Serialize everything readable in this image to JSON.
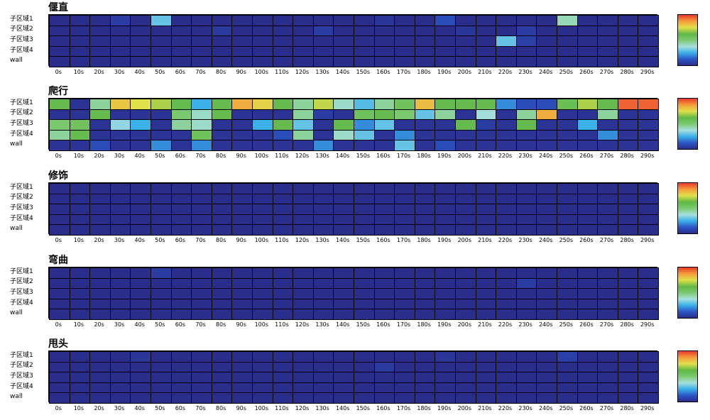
{
  "chart_data": [
    {
      "type": "heatmap",
      "title": "偃直",
      "rows": [
        "子区域1",
        "子区域2",
        "子区域3",
        "子区域4",
        "wall"
      ],
      "columns": [
        "0s",
        "10s",
        "20s",
        "30s",
        "40s",
        "50s",
        "60s",
        "70s",
        "80s",
        "90s",
        "100s",
        "110s",
        "120s",
        "130s",
        "140s",
        "150s",
        "160s",
        "170s",
        "180s",
        "190s",
        "200s",
        "210s",
        "220s",
        "230s",
        "240s",
        "250s",
        "260s",
        "270s",
        "280s",
        "290s"
      ],
      "values": [
        [
          0,
          0,
          0,
          0.05,
          0,
          0.3,
          0,
          0,
          0,
          0,
          0,
          0,
          0,
          0,
          0,
          0,
          0.03,
          0,
          0,
          0.1,
          0,
          0,
          0,
          0,
          0,
          0.42,
          0,
          0,
          0,
          0
        ],
        [
          0,
          0,
          0,
          0,
          0,
          0,
          0,
          0,
          0.04,
          0,
          0,
          0,
          0,
          0.05,
          0,
          0,
          0,
          0,
          0,
          0,
          0.03,
          0,
          0,
          0.05,
          0,
          0,
          0,
          0,
          0,
          0
        ],
        [
          0,
          0,
          0,
          0,
          0,
          0,
          0,
          0,
          0,
          0,
          0,
          0,
          0,
          0,
          0,
          0,
          0,
          0,
          0,
          0,
          0,
          0,
          0.3,
          0.06,
          0,
          0,
          0,
          0,
          0,
          0
        ],
        [
          0,
          0,
          0,
          0,
          0,
          0,
          0,
          0,
          0,
          0,
          0,
          0,
          0,
          0,
          0,
          0,
          0,
          0,
          0,
          0,
          0,
          0,
          0,
          0,
          0,
          0,
          0,
          0,
          0,
          0
        ],
        [
          0,
          0,
          0,
          0,
          0,
          0,
          0,
          0,
          0,
          0,
          0,
          0,
          0,
          0,
          0,
          0,
          0,
          0,
          0,
          0,
          0,
          0,
          0,
          0,
          0,
          0,
          0,
          0,
          0,
          0
        ]
      ],
      "colormap": [
        "#2b2d8a",
        "#2b55c6",
        "#3cb0e8",
        "#a6e0e0",
        "#7bc96f",
        "#5fb845",
        "#e0e04a",
        "#f4a03c",
        "#e83a2a"
      ]
    },
    {
      "type": "heatmap",
      "title": "爬行",
      "rows": [
        "子区域1",
        "子区域2",
        "子区域3",
        "子区域4",
        "wall"
      ],
      "columns": [
        "0s",
        "10s",
        "20s",
        "30s",
        "40s",
        "50s",
        "60s",
        "70s",
        "80s",
        "90s",
        "100s",
        "110s",
        "120s",
        "130s",
        "140s",
        "150s",
        "160s",
        "170s",
        "180s",
        "190s",
        "200s",
        "210s",
        "220s",
        "230s",
        "240s",
        "250s",
        "260s",
        "270s",
        "280s",
        "290s"
      ],
      "values": [
        [
          0.6,
          0.02,
          0.45,
          0.8,
          0.75,
          0.7,
          0.6,
          0.25,
          0.6,
          0.85,
          0.78,
          0.6,
          0.45,
          0.72,
          0.4,
          0.28,
          0.45,
          0.55,
          0.82,
          0.6,
          0.6,
          0.6,
          0.2,
          0.1,
          0.1,
          0.58,
          0.7,
          0.6,
          0.95,
          0.95
        ],
        [
          0.02,
          0.02,
          0.6,
          0.02,
          0.02,
          0.02,
          0.5,
          0.4,
          0.6,
          0.02,
          0.02,
          0.02,
          0.45,
          0.05,
          0.02,
          0.55,
          0.6,
          0.5,
          0.3,
          0.45,
          0.02,
          0.38,
          0.02,
          0.45,
          0.85,
          0.02,
          0.02,
          0.45,
          0.02,
          0.02
        ],
        [
          0.5,
          0.55,
          0.02,
          0.35,
          0.25,
          0.02,
          0.45,
          0.4,
          0.02,
          0.02,
          0.25,
          0.6,
          0.3,
          0.02,
          0.6,
          0.2,
          0.3,
          0.02,
          0.02,
          0.02,
          0.6,
          0.05,
          0.02,
          0.6,
          0.02,
          0.02,
          0.25,
          0.02,
          0.02,
          0.02
        ],
        [
          0.45,
          0.6,
          0.02,
          0.02,
          0.02,
          0.02,
          0.02,
          0.55,
          0.02,
          0.02,
          0.02,
          0.1,
          0.45,
          0.02,
          0.4,
          0.3,
          0.02,
          0.2,
          0.02,
          0.02,
          0.02,
          0.02,
          0.02,
          0.02,
          0.02,
          0.02,
          0.02,
          0.2,
          0.02,
          0.02
        ],
        [
          0.02,
          0.02,
          0.1,
          0.02,
          0.02,
          0.2,
          0.02,
          0.2,
          0.02,
          0.02,
          0.02,
          0.02,
          0.02,
          0.2,
          0.02,
          0.02,
          0.02,
          0.3,
          0.02,
          0.1,
          0.02,
          0.02,
          0.02,
          0.02,
          0.02,
          0.02,
          0.02,
          0.02,
          0.02,
          0.02
        ]
      ],
      "colormap": [
        "#2b2d8a",
        "#2b55c6",
        "#3cb0e8",
        "#a6e0e0",
        "#7bc96f",
        "#5fb845",
        "#e0e04a",
        "#f4a03c",
        "#e83a2a"
      ]
    },
    {
      "type": "heatmap",
      "title": "修饰",
      "rows": [
        "子区域1",
        "子区域2",
        "子区域3",
        "子区域4",
        "wall"
      ],
      "columns": [
        "0s",
        "10s",
        "20s",
        "30s",
        "40s",
        "50s",
        "60s",
        "70s",
        "80s",
        "90s",
        "100s",
        "110s",
        "120s",
        "130s",
        "140s",
        "150s",
        "160s",
        "170s",
        "180s",
        "190s",
        "200s",
        "210s",
        "220s",
        "230s",
        "240s",
        "250s",
        "260s",
        "270s",
        "280s",
        "290s"
      ],
      "values": [
        [
          0,
          0,
          0,
          0,
          0,
          0,
          0,
          0,
          0,
          0,
          0,
          0,
          0,
          0,
          0,
          0,
          0,
          0,
          0,
          0,
          0,
          0,
          0,
          0,
          0,
          0,
          0,
          0,
          0,
          0
        ],
        [
          0,
          0,
          0,
          0,
          0,
          0,
          0,
          0,
          0,
          0,
          0,
          0,
          0,
          0,
          0,
          0,
          0,
          0,
          0,
          0,
          0,
          0,
          0,
          0,
          0,
          0,
          0,
          0,
          0,
          0
        ],
        [
          0,
          0,
          0,
          0,
          0,
          0,
          0,
          0,
          0,
          0,
          0,
          0,
          0,
          0,
          0,
          0,
          0,
          0,
          0,
          0,
          0,
          0,
          0,
          0,
          0,
          0,
          0,
          0,
          0,
          0
        ],
        [
          0,
          0,
          0,
          0,
          0,
          0,
          0,
          0,
          0,
          0,
          0,
          0,
          0,
          0,
          0,
          0,
          0,
          0,
          0,
          0,
          0,
          0,
          0,
          0,
          0,
          0,
          0,
          0,
          0,
          0
        ],
        [
          0,
          0,
          0,
          0,
          0,
          0,
          0,
          0,
          0,
          0,
          0,
          0,
          0,
          0,
          0,
          0,
          0,
          0,
          0,
          0,
          0,
          0,
          0,
          0,
          0,
          0,
          0,
          0,
          0,
          0
        ]
      ],
      "colormap": [
        "#2b2d8a",
        "#2b55c6",
        "#3cb0e8",
        "#a6e0e0",
        "#7bc96f",
        "#5fb845",
        "#e0e04a",
        "#f4a03c",
        "#e83a2a"
      ]
    },
    {
      "type": "heatmap",
      "title": "弯曲",
      "rows": [
        "子区域1",
        "子区域2",
        "子区域3",
        "子区域4",
        "wall"
      ],
      "columns": [
        "0s",
        "10s",
        "20s",
        "30s",
        "40s",
        "50s",
        "60s",
        "70s",
        "80s",
        "90s",
        "100s",
        "110s",
        "120s",
        "130s",
        "140s",
        "150s",
        "160s",
        "170s",
        "180s",
        "190s",
        "200s",
        "210s",
        "220s",
        "230s",
        "240s",
        "250s",
        "260s",
        "270s",
        "280s",
        "290s"
      ],
      "values": [
        [
          0,
          0,
          0,
          0,
          0,
          0.05,
          0,
          0,
          0,
          0,
          0,
          0,
          0,
          0,
          0,
          0,
          0,
          0,
          0,
          0,
          0,
          0,
          0,
          0,
          0,
          0,
          0,
          0,
          0,
          0
        ],
        [
          0,
          0,
          0,
          0,
          0,
          0,
          0,
          0,
          0,
          0,
          0,
          0,
          0,
          0,
          0,
          0,
          0,
          0,
          0,
          0,
          0,
          0,
          0,
          0.05,
          0,
          0,
          0,
          0,
          0,
          0
        ],
        [
          0,
          0,
          0,
          0,
          0,
          0,
          0,
          0,
          0,
          0,
          0,
          0,
          0,
          0,
          0,
          0,
          0,
          0,
          0,
          0,
          0,
          0,
          0,
          0,
          0,
          0,
          0,
          0,
          0,
          0
        ],
        [
          0,
          0,
          0,
          0,
          0,
          0,
          0,
          0,
          0,
          0,
          0,
          0,
          0,
          0,
          0,
          0,
          0,
          0,
          0,
          0,
          0,
          0,
          0,
          0,
          0,
          0,
          0,
          0,
          0,
          0
        ],
        [
          0,
          0,
          0,
          0,
          0,
          0,
          0,
          0,
          0,
          0,
          0,
          0,
          0,
          0,
          0,
          0,
          0,
          0,
          0,
          0,
          0,
          0,
          0,
          0,
          0,
          0,
          0,
          0,
          0,
          0
        ]
      ],
      "colormap": [
        "#2b2d8a",
        "#2b55c6",
        "#3cb0e8",
        "#a6e0e0",
        "#7bc96f",
        "#5fb845",
        "#e0e04a",
        "#f4a03c",
        "#e83a2a"
      ]
    },
    {
      "type": "heatmap",
      "title": "甩头",
      "rows": [
        "子区域1",
        "子区域2",
        "子区域3",
        "子区域4",
        "wall"
      ],
      "columns": [
        "0s",
        "10s",
        "20s",
        "30s",
        "40s",
        "50s",
        "60s",
        "70s",
        "80s",
        "90s",
        "100s",
        "110s",
        "120s",
        "130s",
        "140s",
        "150s",
        "160s",
        "170s",
        "180s",
        "190s",
        "200s",
        "210s",
        "220s",
        "230s",
        "240s",
        "250s",
        "260s",
        "270s",
        "280s",
        "290s"
      ],
      "values": [
        [
          0,
          0,
          0,
          0,
          0.03,
          0,
          0,
          0,
          0,
          0,
          0,
          0,
          0,
          0,
          0,
          0,
          0,
          0,
          0,
          0.03,
          0,
          0,
          0,
          0,
          0,
          0.06,
          0,
          0,
          0,
          0
        ],
        [
          0,
          0,
          0,
          0,
          0,
          0,
          0,
          0,
          0,
          0,
          0,
          0,
          0,
          0,
          0,
          0,
          0.04,
          0,
          0,
          0,
          0,
          0,
          0,
          0,
          0,
          0,
          0,
          0,
          0,
          0
        ],
        [
          0,
          0,
          0,
          0,
          0,
          0,
          0,
          0,
          0,
          0,
          0,
          0,
          0,
          0,
          0,
          0,
          0,
          0,
          0,
          0,
          0,
          0,
          0,
          0,
          0,
          0,
          0,
          0,
          0,
          0
        ],
        [
          0,
          0,
          0,
          0,
          0,
          0,
          0,
          0,
          0,
          0,
          0,
          0,
          0,
          0,
          0,
          0,
          0,
          0,
          0,
          0,
          0,
          0,
          0,
          0,
          0,
          0,
          0,
          0,
          0,
          0
        ],
        [
          0,
          0,
          0,
          0,
          0,
          0,
          0,
          0,
          0,
          0,
          0,
          0,
          0,
          0,
          0,
          0,
          0,
          0,
          0,
          0,
          0,
          0,
          0,
          0,
          0,
          0,
          0,
          0,
          0,
          0
        ]
      ],
      "colormap": [
        "#2b2d8a",
        "#2b55c6",
        "#3cb0e8",
        "#a6e0e0",
        "#7bc96f",
        "#5fb845",
        "#e0e04a",
        "#f4a03c",
        "#e83a2a"
      ]
    }
  ]
}
